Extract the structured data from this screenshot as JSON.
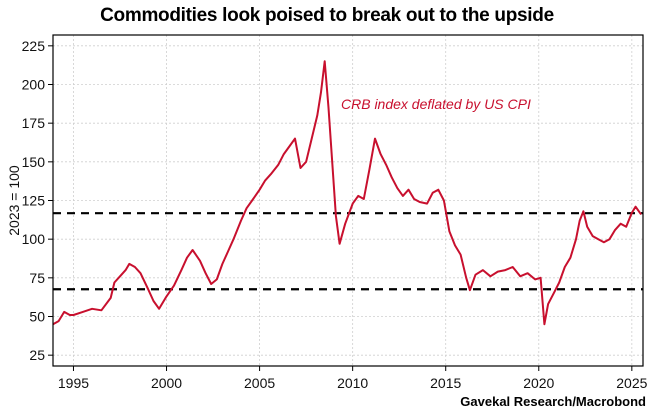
{
  "chart_data": {
    "type": "line",
    "title": "Commodities look poised to break out to the upside",
    "xlabel": "",
    "ylabel": "2023 = 100",
    "source": "Gavekal Research/Macrobond",
    "xlim": [
      1993.9,
      2025.6
    ],
    "ylim": [
      18,
      232
    ],
    "xticks": [
      1995,
      2000,
      2005,
      2010,
      2015,
      2020,
      2025
    ],
    "yticks": [
      25,
      50,
      75,
      100,
      125,
      150,
      175,
      200,
      225
    ],
    "grid": true,
    "annotation": "CRB index deflated by US CPI",
    "reference_lines": [
      116.8,
      67.6
    ],
    "series": [
      {
        "name": "CRB index deflated by US CPI",
        "color": "#c8102e",
        "x": [
          1993.9,
          1994.2,
          1994.5,
          1994.8,
          1995.0,
          1995.5,
          1996.0,
          1996.5,
          1997.0,
          1997.2,
          1997.5,
          1997.8,
          1998.0,
          1998.3,
          1998.6,
          1999.0,
          1999.3,
          1999.6,
          2000.0,
          2000.4,
          2000.8,
          2001.1,
          2001.4,
          2001.8,
          2002.1,
          2002.4,
          2002.7,
          2003.0,
          2003.3,
          2003.6,
          2004.0,
          2004.3,
          2004.6,
          2005.0,
          2005.3,
          2005.6,
          2006.0,
          2006.3,
          2006.6,
          2006.9,
          2007.2,
          2007.5,
          2007.8,
          2008.1,
          2008.3,
          2008.5,
          2008.7,
          2008.9,
          2009.1,
          2009.3,
          2009.6,
          2010.0,
          2010.3,
          2010.6,
          2010.9,
          2011.2,
          2011.5,
          2011.8,
          2012.1,
          2012.4,
          2012.7,
          2013.0,
          2013.3,
          2013.6,
          2014.0,
          2014.3,
          2014.6,
          2014.9,
          2015.2,
          2015.5,
          2015.8,
          2016.1,
          2016.3,
          2016.6,
          2017.0,
          2017.4,
          2017.8,
          2018.2,
          2018.6,
          2019.0,
          2019.4,
          2019.8,
          2020.1,
          2020.3,
          2020.5,
          2020.8,
          2021.1,
          2021.4,
          2021.7,
          2022.0,
          2022.2,
          2022.4,
          2022.6,
          2022.9,
          2023.2,
          2023.5,
          2023.8,
          2024.1,
          2024.4,
          2024.7,
          2025.0,
          2025.2,
          2025.5
        ],
        "values": [
          45,
          47,
          53,
          51,
          51,
          53,
          55,
          54,
          62,
          72,
          76,
          80,
          84,
          82,
          78,
          68,
          60,
          55,
          63,
          70,
          80,
          88,
          93,
          86,
          78,
          71,
          74,
          84,
          92,
          100,
          112,
          120,
          125,
          132,
          138,
          142,
          148,
          155,
          160,
          165,
          146,
          150,
          165,
          180,
          195,
          215,
          185,
          150,
          115,
          97,
          110,
          123,
          128,
          126,
          145,
          165,
          155,
          148,
          140,
          133,
          128,
          132,
          126,
          124,
          123,
          130,
          132,
          125,
          105,
          96,
          90,
          75,
          67,
          77,
          80,
          76,
          79,
          80,
          82,
          76,
          78,
          74,
          75,
          45,
          58,
          65,
          72,
          82,
          88,
          100,
          112,
          118,
          108,
          102,
          100,
          98,
          100,
          106,
          110,
          108,
          117,
          121,
          116
        ]
      }
    ]
  }
}
